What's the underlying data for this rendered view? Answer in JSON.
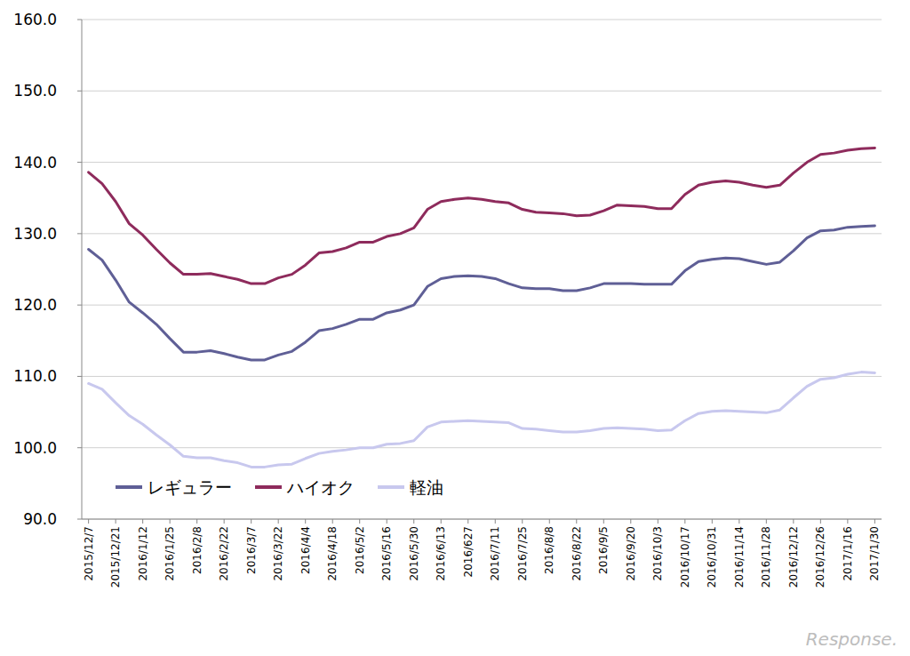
{
  "chart_data": {
    "type": "line",
    "categories": [
      "2015/12/7",
      null,
      "2015/12/21",
      null,
      "2016/1/12",
      null,
      "2016/1/25",
      null,
      "2016/2/8",
      null,
      "2016/2/22",
      null,
      "2016/3/7",
      null,
      "2016/3/22",
      null,
      "2016/4/4",
      null,
      "2016/4/18",
      null,
      "2016/5/2",
      null,
      "2016/5/16",
      null,
      "2016/5/30",
      null,
      "2016/6/13",
      null,
      "2016/627",
      null,
      "2016/7/11",
      null,
      "2016/7/25",
      null,
      "2016/8/8",
      null,
      "2016/8/22",
      null,
      "2016/9/5",
      null,
      "2016/9/20",
      null,
      "2016/10/3",
      null,
      "2016/10/17",
      null,
      "2016/10/31",
      null,
      "2016/11/14",
      null,
      "2016/11/28",
      null,
      "2016/12/12",
      null,
      "2016/12/26",
      null,
      "2017/1/16",
      null,
      "2017/1/30"
    ],
    "series": [
      {
        "name": "レギュラー",
        "color": "#5f5f96",
        "values": [
          127.8,
          126.3,
          123.5,
          120.4,
          118.9,
          117.3,
          115.3,
          113.4,
          113.4,
          113.6,
          113.2,
          112.7,
          112.3,
          112.3,
          113.0,
          113.5,
          114.8,
          116.4,
          116.7,
          117.3,
          118.0,
          118.0,
          118.9,
          119.3,
          120.0,
          122.6,
          123.7,
          124.0,
          124.1,
          124.0,
          123.7,
          123.0,
          122.4,
          122.3,
          122.3,
          122.0,
          122.0,
          122.4,
          123.0,
          123.0,
          123.0,
          122.9,
          122.9,
          122.9,
          124.8,
          126.1,
          126.4,
          126.6,
          126.5,
          126.1,
          125.7,
          126.0,
          127.6,
          129.4,
          130.4,
          130.5,
          130.9,
          131.0,
          131.1
        ]
      },
      {
        "name": "ハイオク",
        "color": "#8e2b5c",
        "values": [
          138.6,
          137.0,
          134.5,
          131.4,
          129.8,
          127.8,
          125.9,
          124.3,
          124.3,
          124.4,
          124.0,
          123.6,
          123.0,
          123.0,
          123.8,
          124.3,
          125.6,
          127.3,
          127.5,
          128.0,
          128.8,
          128.8,
          129.6,
          130.0,
          130.8,
          133.4,
          134.5,
          134.8,
          135.0,
          134.8,
          134.5,
          134.3,
          133.4,
          133.0,
          132.9,
          132.8,
          132.5,
          132.6,
          133.2,
          134.0,
          133.9,
          133.8,
          133.5,
          133.5,
          135.5,
          136.8,
          137.2,
          137.4,
          137.2,
          136.8,
          136.5,
          136.8,
          138.5,
          140.0,
          141.1,
          141.3,
          141.7,
          141.9,
          142.0
        ]
      },
      {
        "name": "軽油",
        "color": "#c8c8ee",
        "values": [
          109.0,
          108.2,
          106.3,
          104.5,
          103.3,
          101.8,
          100.4,
          98.8,
          98.6,
          98.6,
          98.2,
          97.9,
          97.3,
          97.3,
          97.6,
          97.7,
          98.5,
          99.2,
          99.5,
          99.7,
          100.0,
          100.0,
          100.5,
          100.6,
          101.0,
          102.9,
          103.6,
          103.7,
          103.8,
          103.7,
          103.6,
          103.5,
          102.7,
          102.6,
          102.4,
          102.2,
          102.2,
          102.4,
          102.7,
          102.8,
          102.7,
          102.6,
          102.4,
          102.5,
          103.8,
          104.8,
          105.1,
          105.2,
          105.1,
          105.0,
          104.9,
          105.3,
          107.0,
          108.6,
          109.6,
          109.8,
          110.3,
          110.6,
          110.5
        ]
      }
    ],
    "ylim": [
      90,
      160
    ],
    "yticks": [
      {
        "value": 90,
        "label": "90.0"
      },
      {
        "value": 100,
        "label": "100.0"
      },
      {
        "value": 110,
        "label": "110.0"
      },
      {
        "value": 120,
        "label": "120.0"
      },
      {
        "value": 130,
        "label": "130.0"
      },
      {
        "value": 140,
        "label": "140.0"
      },
      {
        "value": 150,
        "label": "150.0"
      },
      {
        "value": 160,
        "label": "160.0"
      }
    ],
    "grid": true,
    "legend": "lower left",
    "annotation": "Response."
  }
}
